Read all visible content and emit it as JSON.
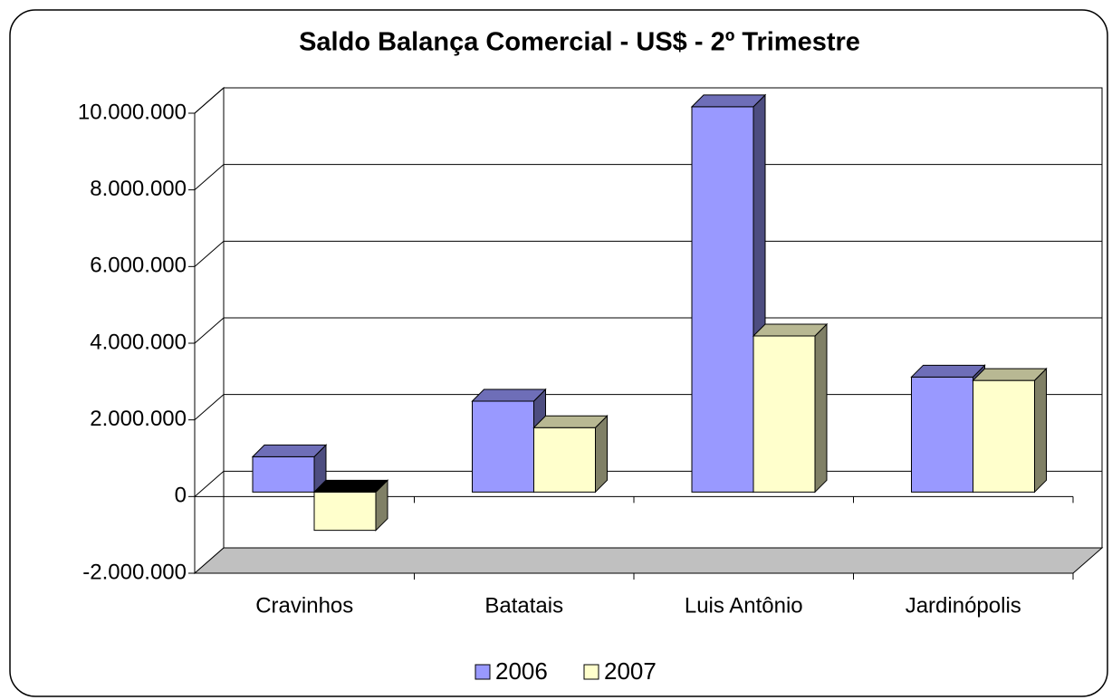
{
  "chart_data": {
    "type": "bar3d",
    "title": "Saldo Balança Comercial - US$  - 2º Trimestre",
    "categories": [
      "Cravinhos",
      "Batatais",
      "Luis Antônio",
      "Jardinópolis"
    ],
    "series": [
      {
        "name": "2006",
        "color": "#9999ff",
        "values": [
          920000,
          2370000,
          10050000,
          3000000
        ]
      },
      {
        "name": "2007",
        "color": "#ffffcc",
        "values": [
          -1000000,
          1680000,
          4070000,
          2910000
        ]
      }
    ],
    "ylim": [
      -2000000,
      10000000
    ],
    "yticks": [
      {
        "value": -2000000,
        "label": "-2.000.000"
      },
      0,
      {
        "value": 2000000,
        "label": "2.000.000"
      },
      {
        "value": 4000000,
        "label": "4.000.000"
      },
      {
        "value": 6000000,
        "label": "6.000.000"
      },
      {
        "value": 8000000,
        "label": "8.000.000"
      },
      {
        "value": 10000000,
        "label": "10.000.000"
      }
    ],
    "grid": true,
    "legend": "bottom"
  }
}
